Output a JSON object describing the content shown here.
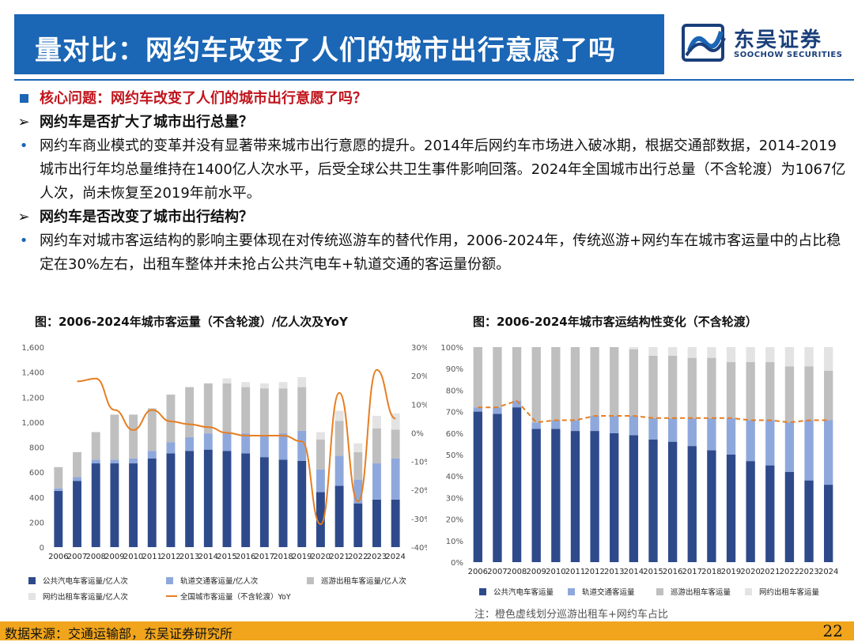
{
  "header": {
    "title": "量对比：网约车改变了人们的城市出行意愿了吗",
    "logo_cn": "东吴证券",
    "logo_en": "SOOCHOW SECURITIES",
    "brand_color": "#1b66b5"
  },
  "content": {
    "core_question": "核心问题：网约车改变了人们的城市出行意愿了吗？",
    "q1": "网约车是否扩大了城市出行总量？",
    "p1": "网约车商业模式的变革并没有显著带来城市出行意愿的提升。2014年后网约车市场进入破冰期，根据交通部数据，2014-2019城市出行年均总量维持在1400亿人次水平，后受全球公共卫生事件影响回落。2024年全国城市出行总量（不含轮渡）为1067亿人次，尚未恢复至2019年前水平。",
    "q2": "网约车是否改变了城市出行结构？",
    "p2": "网约车对城市客运结构的影响主要体现在对传统巡游车的替代作用，2006-2024年，传统巡游+网约车在城市客运量中的占比稳定在30%左右，出租车整体并未抢占公共汽电车+轨道交通的客运量份额。",
    "bullet_glyph": "•",
    "arrow_glyph": "➢"
  },
  "chart_data": [
    {
      "type": "bar",
      "title": "图：2006-2024年城市客运量（不含轮渡）/亿人次及YoY",
      "categories": [
        "2006",
        "2007",
        "2008",
        "2009",
        "2010",
        "2011",
        "2012",
        "2013",
        "2014",
        "2015",
        "2016",
        "2017",
        "2018",
        "2019",
        "2020",
        "2021",
        "2022",
        "2023",
        "2024"
      ],
      "stacked": true,
      "ylim": [
        0,
        1600
      ],
      "y_ticks": [
        "0",
        "200",
        "400",
        "600",
        "800",
        "1,000",
        "1,200",
        "1,400",
        "1,600"
      ],
      "y2lim": [
        -40,
        30
      ],
      "y2_ticks": [
        "-40%",
        "-30%",
        "-20%",
        "-10%",
        "0%",
        "10%",
        "20%",
        "30%"
      ],
      "series": [
        {
          "name": "公共汽电车客运量/亿人次",
          "color": "#2e4a8b",
          "values": [
            450,
            530,
            670,
            670,
            670,
            710,
            750,
            770,
            780,
            770,
            750,
            720,
            700,
            690,
            440,
            490,
            350,
            380,
            380
          ]
        },
        {
          "name": "轨道交通客运量/亿人次",
          "color": "#8fa8dc",
          "values": [
            20,
            30,
            30,
            30,
            40,
            60,
            90,
            110,
            130,
            140,
            160,
            180,
            210,
            240,
            180,
            240,
            190,
            290,
            330
          ]
        },
        {
          "name": "巡游出租车客运量/亿人次",
          "color": "#bfbfbf",
          "values": [
            170,
            200,
            220,
            360,
            350,
            340,
            380,
            400,
            400,
            400,
            370,
            370,
            360,
            350,
            240,
            280,
            220,
            280,
            230
          ]
        },
        {
          "name": "网约出租车客运量/亿人次",
          "color": "#e3e3e3",
          "values": [
            0,
            0,
            0,
            0,
            0,
            0,
            0,
            0,
            0,
            40,
            40,
            40,
            50,
            80,
            60,
            80,
            70,
            100,
            130
          ]
        }
      ],
      "line": {
        "name": "全国城市客运量（不含轮渡）YoY",
        "color": "#e67e22",
        "values": [
          null,
          18,
          19,
          8,
          1,
          8,
          4,
          3,
          2,
          0,
          -1,
          -1,
          -1,
          -3,
          -32,
          14,
          -24,
          22,
          5
        ]
      },
      "legend": [
        "公共汽电车客运量/亿人次",
        "轨道交通客运量/亿人次",
        "巡游出租车客运量/亿人次",
        "网约出租车客运量/亿人次",
        "全国城市客运量（不含轮渡）YoY"
      ]
    },
    {
      "type": "bar",
      "title": "图：2006-2024年城市客运结构性变化（不含轮渡）",
      "categories": [
        "2006",
        "2007",
        "2008",
        "2009",
        "2010",
        "2011",
        "2012",
        "2013",
        "2014",
        "2015",
        "2016",
        "2017",
        "2018",
        "2019",
        "2020",
        "2021",
        "2022",
        "2023",
        "2024"
      ],
      "stacked": true,
      "ylim": [
        0,
        100
      ],
      "y_ticks": [
        "0%",
        "10%",
        "20%",
        "30%",
        "40%",
        "50%",
        "60%",
        "70%",
        "80%",
        "90%",
        "100%"
      ],
      "series": [
        {
          "name": "公共汽电车客运量",
          "color": "#2e4a8b",
          "values": [
            70,
            69,
            72,
            62,
            62,
            61,
            61,
            60,
            59,
            57,
            56,
            54,
            52,
            50,
            47,
            45,
            42,
            38,
            36
          ]
        },
        {
          "name": "轨道交通客运量",
          "color": "#8fa8dc",
          "values": [
            2,
            3,
            3,
            3,
            4,
            5,
            7,
            8,
            9,
            10,
            11,
            13,
            15,
            17,
            19,
            21,
            23,
            28,
            30
          ]
        },
        {
          "name": "巡游出租车客运量",
          "color": "#bfbfbf",
          "values": [
            28,
            28,
            25,
            35,
            34,
            34,
            32,
            32,
            31,
            29,
            29,
            28,
            28,
            26,
            27,
            27,
            26,
            25,
            23
          ]
        },
        {
          "name": "网约出租车客运量",
          "color": "#e3e3e3",
          "values": [
            0,
            0,
            0,
            0,
            0,
            0,
            0,
            0,
            1,
            4,
            4,
            5,
            5,
            7,
            7,
            7,
            9,
            9,
            11
          ]
        }
      ],
      "line": {
        "name": "巡游出租车+网约车分界",
        "color": "#e67e22",
        "style": "dashed",
        "values": [
          72,
          72,
          75,
          65,
          66,
          66,
          68,
          68,
          68,
          67,
          67,
          67,
          67,
          67,
          66,
          66,
          65,
          66,
          66
        ]
      },
      "legend": [
        "公共汽电车客运量",
        "轨道交通客运量",
        "巡游出租车客运量",
        "网约出租车客运量"
      ],
      "note": "注：橙色虚线划分巡游出租车+网约车占比"
    }
  ],
  "footer": {
    "source": "数据来源：交通运输部，东吴证券研究所",
    "page": "22",
    "color": "#f0a51c"
  }
}
